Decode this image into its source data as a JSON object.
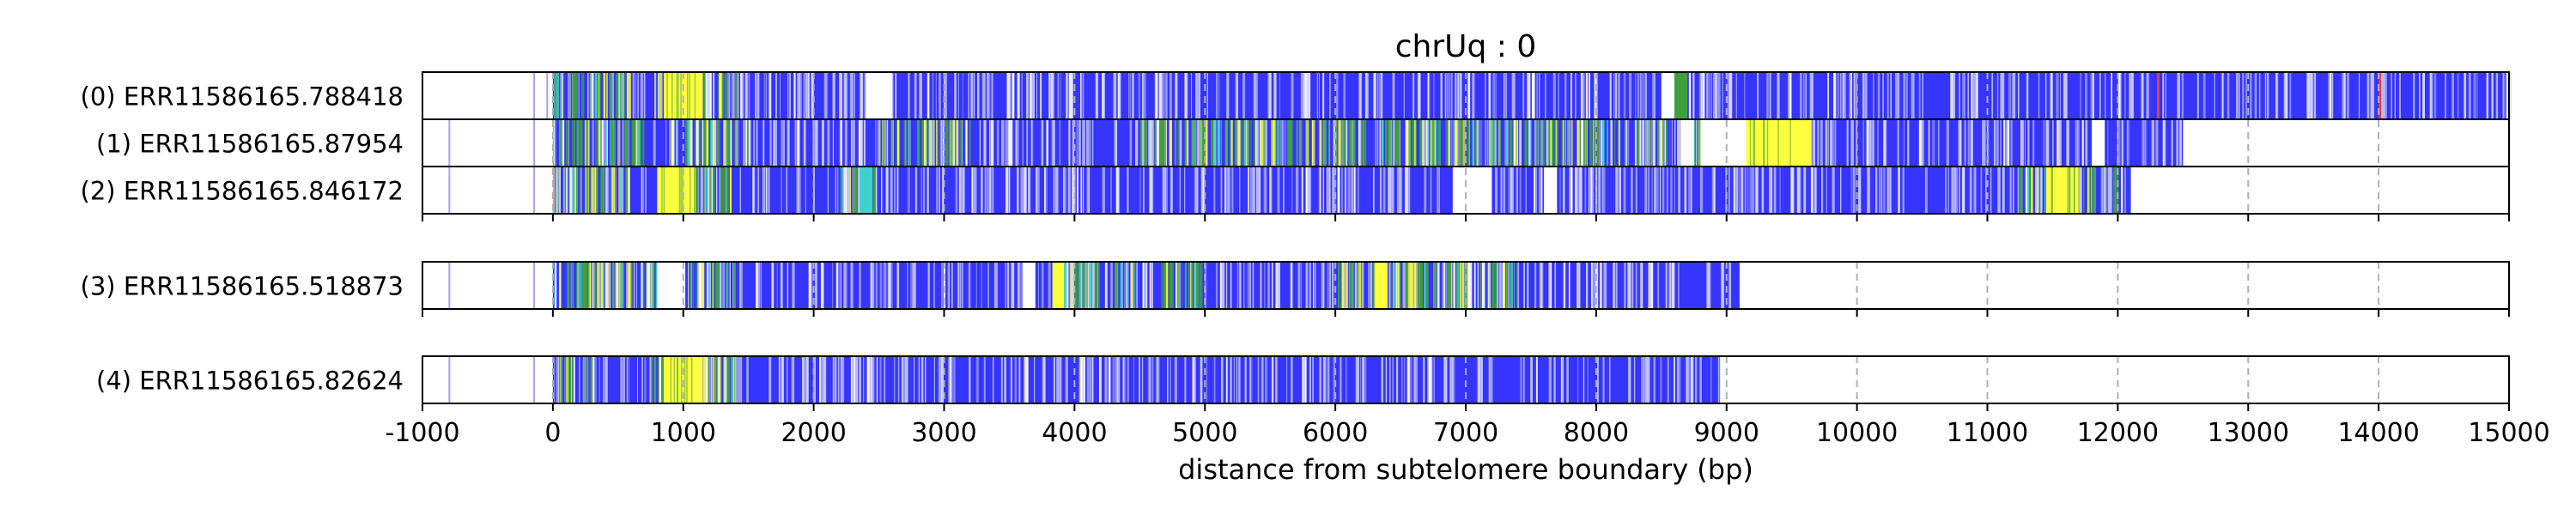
{
  "chart_data": {
    "type": "read-track",
    "title": "chrUq : 0",
    "xlabel": "distance from subtelomere boundary (bp)",
    "ylabel": "",
    "xlim": [
      -1000,
      15000
    ],
    "xticks": [
      -1000,
      0,
      1000,
      2000,
      3000,
      4000,
      5000,
      6000,
      7000,
      8000,
      9000,
      10000,
      11000,
      12000,
      13000,
      14000,
      15000
    ],
    "xtick_labels": [
      "-1000",
      "0",
      "1000",
      "2000",
      "3000",
      "4000",
      "5000",
      "6000",
      "7000",
      "8000",
      "9000",
      "10000",
      "11000",
      "12000",
      "13000",
      "14000",
      "15000"
    ],
    "grid": "vertical dashed",
    "colors": {
      "blue": "#3535ff",
      "yellow": "#ffff40",
      "green": "#3f9f3f",
      "white": "#ffffff",
      "cyan": "#40d0d0",
      "red": "#e04040",
      "grid": "#b0b0b0"
    },
    "groups": [
      {
        "reads": [
          {
            "label": "(0) ERR11586165.788418",
            "start": 0,
            "end": 15000,
            "green_clusters": [
              [
                0,
                600
              ],
              [
                750,
                1400
              ]
            ],
            "segments": [
              {
                "from": 850,
                "to": 1150,
                "color": "yellow"
              },
              {
                "from": 2400,
                "to": 2600,
                "color": "white"
              },
              {
                "from": 8500,
                "to": 8650,
                "color": "white"
              },
              {
                "from": 8600,
                "to": 8700,
                "color": "green"
              },
              {
                "from": 12300,
                "to": 12320,
                "color": "red"
              },
              {
                "from": 14000,
                "to": 14020,
                "color": "red"
              }
            ],
            "outside_marks": [
              -150,
              -50
            ]
          },
          {
            "label": "(1) ERR11586165.87954",
            "start": 0,
            "end": 12500,
            "green_clusters": [
              [
                0,
                700
              ],
              [
                900,
                1500
              ],
              [
                2500,
                3200
              ],
              [
                4500,
                8800
              ]
            ],
            "segments": [
              {
                "from": 9150,
                "to": 9650,
                "color": "yellow"
              },
              {
                "from": 8800,
                "to": 9150,
                "color": "white"
              },
              {
                "from": 8650,
                "to": 8750,
                "color": "white"
              },
              {
                "from": 11800,
                "to": 11900,
                "color": "white"
              }
            ],
            "outside_marks": [
              -800,
              -150
            ]
          },
          {
            "label": "(2) ERR11586165.846172",
            "start": 0,
            "end": 12100,
            "green_clusters": [
              [
                0,
                600
              ],
              [
                900,
                1400
              ],
              [
                2200,
                2500
              ],
              [
                11200,
                12000
              ]
            ],
            "segments": [
              {
                "from": 800,
                "to": 1100,
                "color": "yellow"
              },
              {
                "from": 2350,
                "to": 2450,
                "color": "cyan"
              },
              {
                "from": 6900,
                "to": 7200,
                "color": "white"
              },
              {
                "from": 7600,
                "to": 7700,
                "color": "white"
              },
              {
                "from": 11450,
                "to": 11700,
                "color": "yellow"
              }
            ],
            "outside_marks": [
              -800,
              -150
            ]
          }
        ]
      },
      {
        "reads": [
          {
            "label": "(3) ERR11586165.518873",
            "start": 0,
            "end": 9100,
            "green_clusters": [
              [
                0,
                1400
              ],
              [
                3800,
                4200
              ],
              [
                4300,
                5000
              ],
              [
                6000,
                7400
              ]
            ],
            "segments": [
              {
                "from": 800,
                "to": 1000,
                "color": "white"
              },
              {
                "from": 3830,
                "to": 3920,
                "color": "yellow"
              },
              {
                "from": 6300,
                "to": 6400,
                "color": "yellow"
              },
              {
                "from": 3600,
                "to": 3700,
                "color": "white"
              }
            ],
            "outside_marks": [
              -800,
              -150
            ]
          }
        ]
      },
      {
        "reads": [
          {
            "label": "(4) ERR11586165.82624",
            "start": 0,
            "end": 8950,
            "green_clusters": [
              [
                0,
                300
              ],
              [
                700,
                1400
              ]
            ],
            "segments": [
              {
                "from": 850,
                "to": 1150,
                "color": "yellow"
              }
            ],
            "outside_marks": [
              -800,
              -150
            ]
          }
        ]
      }
    ]
  }
}
